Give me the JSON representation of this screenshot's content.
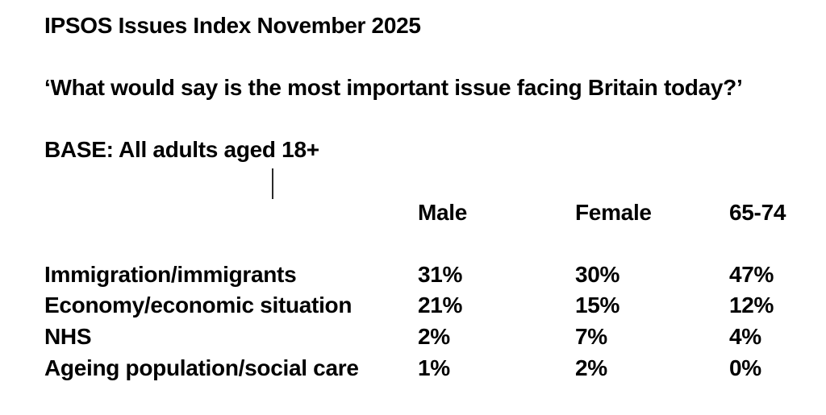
{
  "headings": {
    "title": "IPSOS Issues Index November 2025",
    "question": "‘What would say is the most important issue facing Britain today?’",
    "base": "BASE: All adults aged 18+"
  },
  "table": {
    "columns": [
      "Male",
      "Female",
      "65-74"
    ],
    "rows": [
      {
        "label": "Immigration/immigrants",
        "values": [
          "31%",
          "30%",
          "47%"
        ]
      },
      {
        "label": "Economy/economic situation",
        "values": [
          "21%",
          "15%",
          "12%"
        ]
      },
      {
        "label": "NHS",
        "values": [
          "2%",
          "7%",
          "4%"
        ]
      },
      {
        "label": "Ageing population/social care",
        "values": [
          "1%",
          "2%",
          "0%"
        ]
      }
    ]
  },
  "chart_data": {
    "type": "table",
    "title": "IPSOS Issues Index November 2025",
    "categories": [
      "Immigration/immigrants",
      "Economy/economic situation",
      "NHS",
      "Ageing population/social care"
    ],
    "series": [
      {
        "name": "Male",
        "values": [
          31,
          21,
          2,
          1
        ]
      },
      {
        "name": "Female",
        "values": [
          30,
          15,
          7,
          2
        ]
      },
      {
        "name": "65-74",
        "values": [
          47,
          12,
          4,
          0
        ]
      }
    ],
    "unit": "%"
  },
  "colors": {
    "text": "#000000",
    "background": "#ffffff",
    "caret": "#2a2a2a"
  }
}
